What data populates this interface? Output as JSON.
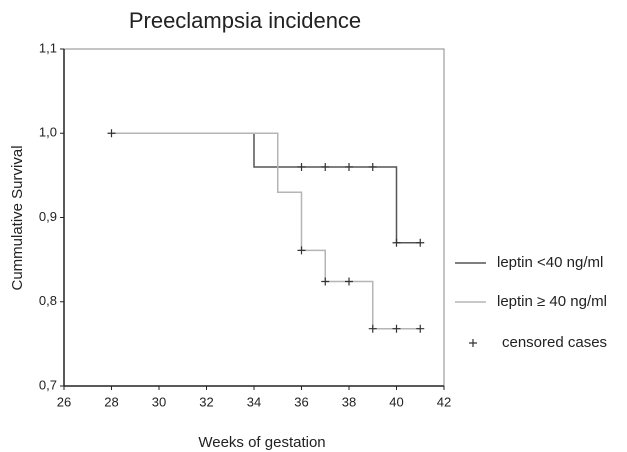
{
  "chart_data": {
    "type": "step",
    "title": "Preeclampsia incidence",
    "xlabel": "Weeks of gestation",
    "ylabel": "Cummulative Survival",
    "xlim": [
      26,
      42
    ],
    "xticks": [
      26,
      28,
      30,
      32,
      34,
      36,
      38,
      40,
      42
    ],
    "ylim": [
      0.7,
      1.1
    ],
    "yticks": [
      {
        "value": 0.7,
        "label": "0,7"
      },
      {
        "value": 0.8,
        "label": "0,8"
      },
      {
        "value": 0.9,
        "label": "0,9"
      },
      {
        "value": 1.0,
        "label": "1,0"
      },
      {
        "value": 1.1,
        "label": "1,1"
      }
    ],
    "series": [
      {
        "name": "leptin <40 ng/ml",
        "color": "#555555",
        "x": [
          28,
          34,
          40,
          41
        ],
        "values": [
          1.0,
          0.96,
          0.87,
          0.87
        ]
      },
      {
        "name": "leptin ≥ 40 ng/ml",
        "color": "#b5b5b5",
        "x": [
          28,
          35,
          36,
          37,
          39,
          41
        ],
        "values": [
          1.0,
          0.93,
          0.861,
          0.824,
          0.768,
          0.768
        ]
      }
    ],
    "censored": {
      "name": "censored cases",
      "color": "#333333",
      "x": [
        28,
        36,
        37,
        38,
        39,
        40,
        41,
        36,
        37,
        38,
        39,
        40,
        41
      ],
      "values": [
        1.0,
        0.96,
        0.96,
        0.96,
        0.96,
        0.87,
        0.87,
        0.861,
        0.824,
        0.824,
        0.768,
        0.768,
        0.768
      ]
    }
  }
}
